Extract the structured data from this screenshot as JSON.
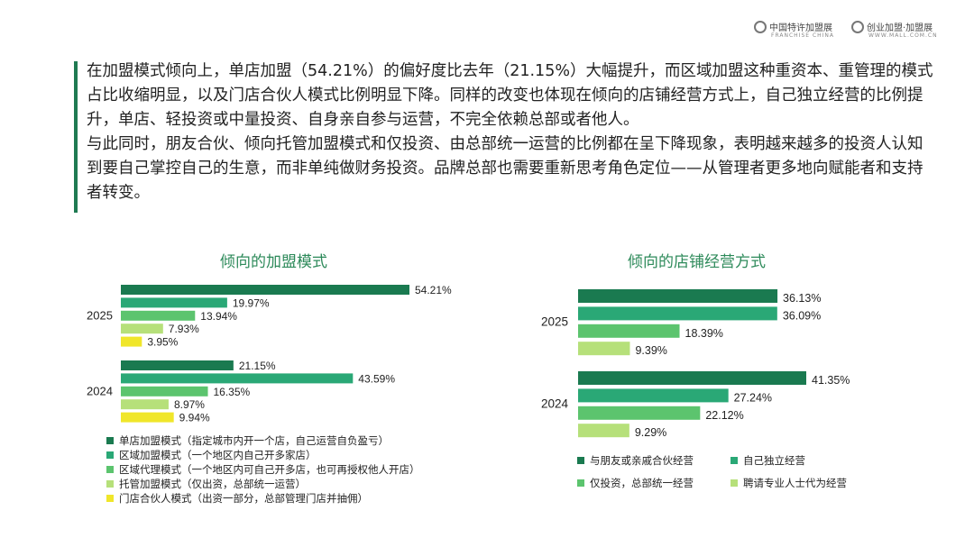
{
  "header": {
    "logo_left": {
      "name_cn": "中国特许加盟展",
      "name_en": "FRANCHISE CHINA"
    },
    "logo_right": {
      "name_cn": "创业加盟·加盟展",
      "name_en": "WWW.MALL.COM.CN"
    }
  },
  "paragraphs": [
    "在加盟模式倾向上，单店加盟（54.21%）的偏好度比去年（21.15%）大幅提升，而区域加盟这种重资本、重管理的模式占比收缩明显，以及门店合伙人模式比例明显下降。同样的改变也体现在倾向的店铺经营方式上，自己独立经营的比例提升，单店、轻投资或中量投资、自身亲自参与运营，不完全依赖总部或者他人。",
    "与此同时，朋友合伙、倾向托管加盟模式和仅投资、由总部统一运营的比例都在呈下降现象，表明越来越多的投资人认知到要自己掌控自己的生意，而非单纯做财务投资。品牌总部也需要重新思考角色定位——从管理者更多地向赋能者和支持者转变。"
  ],
  "chart_data": [
    {
      "type": "bar",
      "orientation": "horizontal",
      "title": "倾向的加盟模式",
      "groups": [
        "2025",
        "2024"
      ],
      "series": [
        {
          "name": "单店加盟模式（指定城市内开一个店，自己运营自负盈亏）",
          "color": "#1a7a50",
          "values": [
            54.21,
            21.15
          ]
        },
        {
          "name": "区域加盟模式（一个地区内自己开多家店）",
          "color": "#2aa876",
          "values": [
            19.97,
            43.59
          ]
        },
        {
          "name": "区域代理模式（一个地区内可自己开多店，也可再授权他人开店）",
          "color": "#5cc46e",
          "values": [
            13.94,
            16.35
          ]
        },
        {
          "name": "托管加盟模式（仅出资，总部统一运营）",
          "color": "#b6e07a",
          "values": [
            7.93,
            8.97
          ]
        },
        {
          "name": "门店合伙人模式（出资一部分，总部管理门店并抽佣）",
          "color": "#f0e62a",
          "values": [
            3.95,
            9.94
          ]
        }
      ],
      "value_labels": [
        [
          "54.21%",
          "19.97%",
          "13.94%",
          "7.93%",
          "3.95%"
        ],
        [
          "21.15%",
          "43.59%",
          "16.35%",
          "8.97%",
          "9.94%"
        ]
      ],
      "xlim": [
        0,
        60
      ],
      "legend_position": "bottom",
      "grid": false
    },
    {
      "type": "bar",
      "orientation": "horizontal",
      "title": "倾向的店铺经营方式",
      "groups": [
        "2025",
        "2024"
      ],
      "series": [
        {
          "name": "与朋友或亲戚合伙经营",
          "color": "#1a7a50",
          "values": [
            36.13,
            41.35
          ]
        },
        {
          "name": "自己独立经营",
          "color": "#2aa876",
          "values": [
            36.09,
            27.24
          ]
        },
        {
          "name": "仅投资，总部统一经营",
          "color": "#5cc46e",
          "values": [
            18.39,
            22.12
          ]
        },
        {
          "name": "聘请专业人士代为经营",
          "color": "#b6e07a",
          "values": [
            9.39,
            9.29
          ]
        }
      ],
      "value_labels": [
        [
          "36.13%",
          "36.09%",
          "18.39%",
          "9.39%"
        ],
        [
          "41.35%",
          "27.24%",
          "22.12%",
          "9.29%"
        ]
      ],
      "xlim": [
        0,
        45
      ],
      "legend_position": "bottom",
      "grid": false
    }
  ]
}
